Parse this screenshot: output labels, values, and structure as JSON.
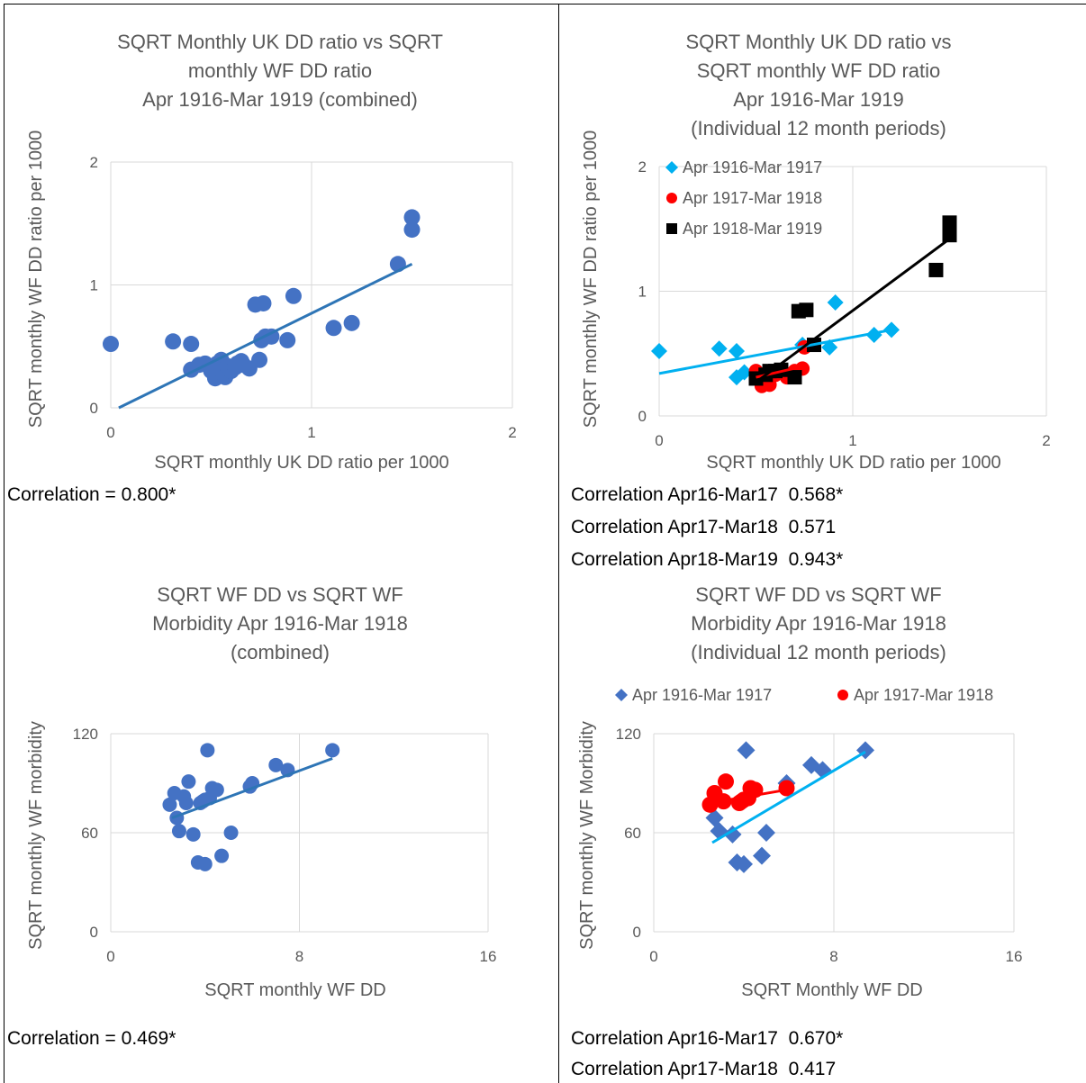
{
  "colors": {
    "series_blue": "#4472C4",
    "trend_blue": "#2E75B6",
    "light_blue": "#00B0F0",
    "red": "#FF0000",
    "black": "#000000",
    "grid": "#D9D9D9",
    "text": "#595959"
  },
  "captions": {
    "tl": "Correlation = 0.800*",
    "tr1": "Correlation Apr16-Mar17  0.568*",
    "tr2": "Correlation Apr17-Mar18  0.571",
    "tr3": "Correlation Apr18-Mar19  0.943*",
    "bl": "Correlation = 0.469*",
    "br1": "Correlation Apr16-Mar17  0.670*",
    "br2": "Correlation Apr17-Mar18  0.417"
  },
  "chart_data": [
    {
      "id": "tl",
      "type": "scatter",
      "title": [
        "SQRT Monthly UK DD ratio vs SQRT",
        "monthly WF DD ratio",
        "Apr 1916-Mar 1919 (combined)"
      ],
      "xlabel": "SQRT monthly UK DD ratio per 1000",
      "ylabel": "SQRT monthly WF DD ratio per 1000",
      "xlim": [
        0,
        2
      ],
      "ylim": [
        0,
        2
      ],
      "xticks": [
        "0",
        "1",
        "2"
      ],
      "yticks": [
        "0",
        "1",
        "2"
      ],
      "grid": true,
      "legend": "none",
      "series": [
        {
          "marker": "circle",
          "color": "#4472C4",
          "points": [
            [
              0.0,
              0.52
            ],
            [
              0.31,
              0.54
            ],
            [
              0.4,
              0.52
            ],
            [
              0.4,
              0.31
            ],
            [
              0.44,
              0.35
            ],
            [
              0.47,
              0.36
            ],
            [
              0.5,
              0.3
            ],
            [
              0.52,
              0.24
            ],
            [
              0.53,
              0.36
            ],
            [
              0.54,
              0.32
            ],
            [
              0.55,
              0.39
            ],
            [
              0.57,
              0.25
            ],
            [
              0.58,
              0.34
            ],
            [
              0.6,
              0.3
            ],
            [
              0.62,
              0.33
            ],
            [
              0.63,
              0.36
            ],
            [
              0.65,
              0.38
            ],
            [
              0.66,
              0.35
            ],
            [
              0.69,
              0.32
            ],
            [
              0.72,
              0.84
            ],
            [
              0.74,
              0.39
            ],
            [
              0.75,
              0.55
            ],
            [
              0.76,
              0.85
            ],
            [
              0.77,
              0.58
            ],
            [
              0.8,
              0.58
            ],
            [
              0.88,
              0.55
            ],
            [
              0.91,
              0.91
            ],
            [
              1.11,
              0.65
            ],
            [
              1.2,
              0.69
            ],
            [
              1.43,
              1.17
            ],
            [
              1.5,
              1.55
            ],
            [
              1.5,
              1.45
            ]
          ]
        }
      ],
      "trendlines": [
        {
          "color": "#2E75B6",
          "from": [
            0.04,
            0.0
          ],
          "to": [
            1.5,
            1.17
          ]
        }
      ]
    },
    {
      "id": "tr",
      "type": "scatter",
      "title": [
        "SQRT Monthly UK DD ratio vs",
        "SQRT monthly WF DD ratio",
        "Apr 1916-Mar 1919",
        "(Individual 12 month periods)"
      ],
      "xlabel": "SQRT monthly UK DD ratio per 1000",
      "ylabel": "SQRT monthly WF DD ratio per 1000",
      "xlim": [
        0,
        2
      ],
      "ylim": [
        0,
        2
      ],
      "xticks": [
        "0",
        "1",
        "2"
      ],
      "yticks": [
        "0",
        "1",
        "2"
      ],
      "grid": true,
      "legend": "top-left inside",
      "series": [
        {
          "name": "Apr 1916-Mar 1917",
          "marker": "diamond",
          "color": "#00B0F0",
          "points": [
            [
              0.0,
              0.52
            ],
            [
              0.31,
              0.54
            ],
            [
              0.4,
              0.52
            ],
            [
              0.4,
              0.31
            ],
            [
              0.44,
              0.35
            ],
            [
              0.74,
              0.57
            ],
            [
              0.88,
              0.55
            ],
            [
              0.91,
              0.91
            ],
            [
              1.11,
              0.65
            ],
            [
              1.2,
              0.69
            ]
          ]
        },
        {
          "name": "Apr 1917-Mar 1918",
          "marker": "circle",
          "color": "#FF0000",
          "points": [
            [
              0.5,
              0.36
            ],
            [
              0.53,
              0.24
            ],
            [
              0.55,
              0.3
            ],
            [
              0.57,
              0.25
            ],
            [
              0.6,
              0.33
            ],
            [
              0.64,
              0.35
            ],
            [
              0.66,
              0.31
            ],
            [
              0.7,
              0.36
            ],
            [
              0.74,
              0.38
            ],
            [
              0.75,
              0.55
            ]
          ]
        },
        {
          "name": "Apr 1918-Mar 1919",
          "marker": "square",
          "color": "#000000",
          "points": [
            [
              0.5,
              0.3
            ],
            [
              0.55,
              0.33
            ],
            [
              0.57,
              0.36
            ],
            [
              0.6,
              0.36
            ],
            [
              0.63,
              0.37
            ],
            [
              0.7,
              0.31
            ],
            [
              0.72,
              0.84
            ],
            [
              0.76,
              0.85
            ],
            [
              0.8,
              0.57
            ],
            [
              1.43,
              1.17
            ],
            [
              1.5,
              1.55
            ],
            [
              1.5,
              1.45
            ]
          ]
        }
      ],
      "trendlines": [
        {
          "color": "#00B0F0",
          "from": [
            0.0,
            0.34
          ],
          "to": [
            1.2,
            0.69
          ]
        },
        {
          "color": "#FF0000",
          "from": [
            0.5,
            0.31
          ],
          "to": [
            0.75,
            0.4
          ]
        },
        {
          "color": "#000000",
          "from": [
            0.5,
            0.27
          ],
          "to": [
            1.5,
            1.42
          ]
        }
      ]
    },
    {
      "id": "bl",
      "type": "scatter",
      "title": [
        "SQRT WF DD vs SQRT WF",
        "Morbidity Apr 1916-Mar 1918",
        "(combined)"
      ],
      "xlabel": "SQRT monthly WF DD",
      "ylabel": "SQRT monthly  WF morbidity",
      "xlim": [
        0,
        16
      ],
      "ylim": [
        0,
        120
      ],
      "xticks": [
        "0",
        "8",
        "16"
      ],
      "yticks": [
        "0",
        "60",
        "120"
      ],
      "grid": true,
      "legend": "none",
      "series": [
        {
          "marker": "circle",
          "color": "#4472C4",
          "points": [
            [
              2.5,
              77
            ],
            [
              2.7,
              84
            ],
            [
              2.8,
              69
            ],
            [
              2.9,
              61
            ],
            [
              3.1,
              82
            ],
            [
              3.2,
              78
            ],
            [
              3.3,
              91
            ],
            [
              3.5,
              59
            ],
            [
              3.7,
              42
            ],
            [
              3.8,
              78
            ],
            [
              3.9,
              79
            ],
            [
              4.0,
              41
            ],
            [
              4.0,
              80
            ],
            [
              4.1,
              110
            ],
            [
              4.2,
              81
            ],
            [
              4.3,
              87
            ],
            [
              4.5,
              86
            ],
            [
              4.7,
              46
            ],
            [
              5.1,
              60
            ],
            [
              5.9,
              88
            ],
            [
              6.0,
              90
            ],
            [
              7.0,
              101
            ],
            [
              7.5,
              98
            ],
            [
              9.4,
              110
            ]
          ]
        }
      ],
      "trendlines": [
        {
          "color": "#2E75B6",
          "from": [
            2.6,
            69
          ],
          "to": [
            9.4,
            105
          ]
        }
      ]
    },
    {
      "id": "br",
      "type": "scatter",
      "title": [
        "SQRT WF DD vs SQRT WF",
        "Morbidity Apr 1916-Mar 1918",
        "(Individual 12 month periods)"
      ],
      "xlabel": "SQRT Monthly WF DD",
      "ylabel": "SQRT monthly WF  Morbidity",
      "xlim": [
        0,
        16
      ],
      "ylim": [
        0,
        120
      ],
      "xticks": [
        "0",
        "8",
        "16"
      ],
      "yticks": [
        "0",
        "60",
        "120"
      ],
      "grid": true,
      "legend": "top",
      "series": [
        {
          "name": "Apr 1916-Mar 1917",
          "marker": "diamond",
          "color": "#4472C4",
          "points": [
            [
              2.7,
              69
            ],
            [
              2.9,
              61
            ],
            [
              3.5,
              59
            ],
            [
              3.7,
              42
            ],
            [
              4.0,
              41
            ],
            [
              4.1,
              110
            ],
            [
              4.8,
              46
            ],
            [
              5.0,
              60
            ],
            [
              5.9,
              90
            ],
            [
              7.0,
              101
            ],
            [
              7.5,
              98
            ],
            [
              9.4,
              110
            ]
          ]
        },
        {
          "name": "Apr 1917-Mar 1918",
          "marker": "circle",
          "color": "#FF0000",
          "points": [
            [
              2.5,
              77
            ],
            [
              2.7,
              84
            ],
            [
              3.1,
              79
            ],
            [
              3.2,
              91
            ],
            [
              3.8,
              78
            ],
            [
              3.9,
              79
            ],
            [
              4.0,
              80
            ],
            [
              4.2,
              81
            ],
            [
              4.3,
              87
            ],
            [
              4.5,
              86
            ],
            [
              5.9,
              87
            ]
          ]
        }
      ],
      "trendlines": [
        {
          "color": "#00B0F0",
          "from": [
            2.6,
            54
          ],
          "to": [
            9.4,
            109
          ]
        },
        {
          "color": "#FF0000",
          "from": [
            2.5,
            78
          ],
          "to": [
            5.9,
            86
          ]
        }
      ]
    }
  ]
}
